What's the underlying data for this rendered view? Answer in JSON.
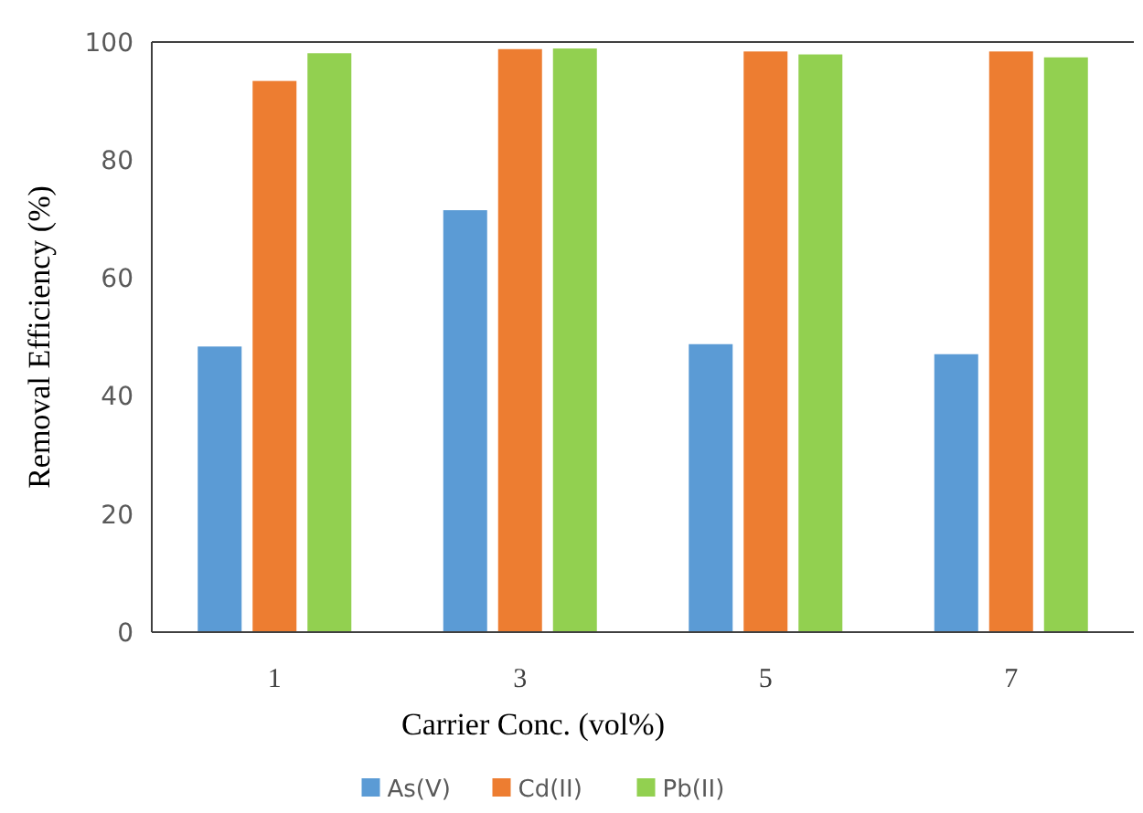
{
  "chart_data": {
    "type": "bar",
    "xlabel": "Carrier Conc. (vol%)",
    "ylabel": "Removal Efficiency (%)",
    "categories": [
      "1",
      "3",
      "5",
      "7"
    ],
    "series": [
      {
        "name": "As(V)",
        "color": "#5b9bd5",
        "values": [
          48.4,
          71.5,
          48.8,
          47.1
        ]
      },
      {
        "name": "Cd(II)",
        "color": "#ed7d31",
        "values": [
          93.4,
          98.8,
          98.4,
          98.4
        ]
      },
      {
        "name": "Pb(II)",
        "color": "#92d050",
        "values": [
          98.1,
          98.9,
          97.9,
          97.4
        ]
      }
    ],
    "ylim": [
      0,
      100
    ],
    "yticks": [
      0,
      20,
      40,
      60,
      80,
      100
    ],
    "grid": false,
    "legend": "bottom"
  }
}
